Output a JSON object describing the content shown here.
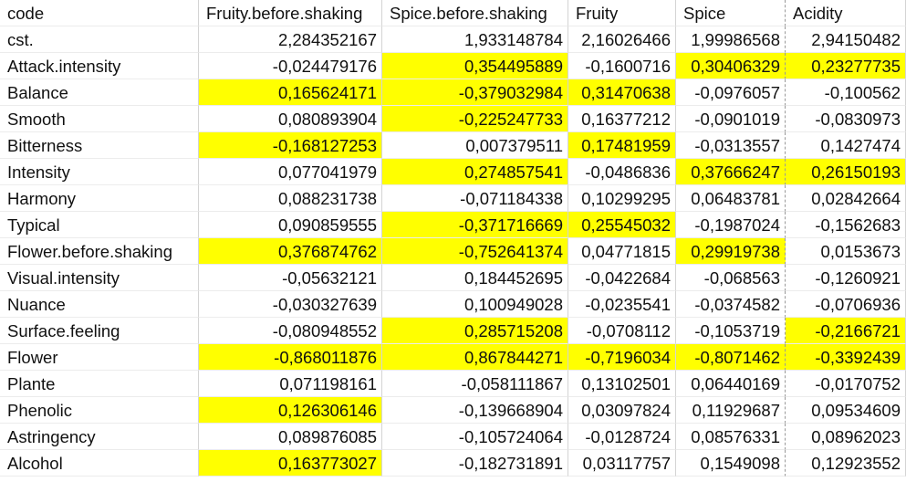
{
  "sheet": {
    "headers": [
      "code",
      "Fruity.before.shaking",
      "Spice.before.shaking",
      "Fruity",
      "Spice",
      "Acidity"
    ],
    "highlight_color": "#ffff00",
    "rows": [
      {
        "code": "cst.",
        "values": [
          "2,284352167",
          "1,933148784",
          "2,16026466",
          "1,99986568",
          "2,94150482"
        ],
        "hl": [
          false,
          false,
          false,
          false,
          false
        ]
      },
      {
        "code": "Attack.intensity",
        "values": [
          "-0,024479176",
          "0,354495889",
          "-0,1600716",
          "0,30406329",
          "0,23277735"
        ],
        "hl": [
          false,
          true,
          false,
          true,
          true
        ]
      },
      {
        "code": "Balance",
        "values": [
          "0,165624171",
          "-0,379032984",
          "0,31470638",
          "-0,0976057",
          "-0,100562"
        ],
        "hl": [
          true,
          true,
          true,
          false,
          false
        ]
      },
      {
        "code": "Smooth",
        "values": [
          "0,080893904",
          "-0,225247733",
          "0,16377212",
          "-0,0901019",
          "-0,0830973"
        ],
        "hl": [
          false,
          true,
          false,
          false,
          false
        ]
      },
      {
        "code": "Bitterness",
        "values": [
          "-0,168127253",
          "0,007379511",
          "0,17481959",
          "-0,0313557",
          "0,1427474"
        ],
        "hl": [
          true,
          false,
          true,
          false,
          false
        ]
      },
      {
        "code": "Intensity",
        "values": [
          "0,077041979",
          "0,274857541",
          "-0,0486836",
          "0,37666247",
          "0,26150193"
        ],
        "hl": [
          false,
          true,
          false,
          true,
          true
        ]
      },
      {
        "code": "Harmony",
        "values": [
          "0,088231738",
          "-0,071184338",
          "0,10299295",
          "0,06483781",
          "0,02842664"
        ],
        "hl": [
          false,
          false,
          false,
          false,
          false
        ]
      },
      {
        "code": "Typical",
        "values": [
          "0,090859555",
          "-0,371716669",
          "0,25545032",
          "-0,1987024",
          "-0,1562683"
        ],
        "hl": [
          false,
          true,
          true,
          false,
          false
        ]
      },
      {
        "code": "Flower.before.shaking",
        "values": [
          "0,376874762",
          "-0,752641374",
          "0,04771815",
          "0,29919738",
          "0,0153673"
        ],
        "hl": [
          true,
          true,
          false,
          true,
          false
        ]
      },
      {
        "code": "Visual.intensity",
        "values": [
          "-0,05632121",
          "0,184452695",
          "-0,0422684",
          "-0,068563",
          "-0,1260921"
        ],
        "hl": [
          false,
          false,
          false,
          false,
          false
        ]
      },
      {
        "code": "Nuance",
        "values": [
          "-0,030327639",
          "0,100949028",
          "-0,0235541",
          "-0,0374582",
          "-0,0706936"
        ],
        "hl": [
          false,
          false,
          false,
          false,
          false
        ]
      },
      {
        "code": "Surface.feeling",
        "values": [
          "-0,080948552",
          "0,285715208",
          "-0,0708112",
          "-0,1053719",
          "-0,2166721"
        ],
        "hl": [
          false,
          true,
          false,
          false,
          true
        ]
      },
      {
        "code": "Flower",
        "values": [
          "-0,868011876",
          "0,867844271",
          "-0,7196034",
          "-0,8071462",
          "-0,3392439"
        ],
        "hl": [
          true,
          true,
          true,
          true,
          true
        ]
      },
      {
        "code": "Plante",
        "values": [
          "0,071198161",
          "-0,058111867",
          "0,13102501",
          "0,06440169",
          "-0,0170752"
        ],
        "hl": [
          false,
          false,
          false,
          false,
          false
        ]
      },
      {
        "code": "Phenolic",
        "values": [
          "0,126306146",
          "-0,139668904",
          "0,03097824",
          "0,11929687",
          "0,09534609"
        ],
        "hl": [
          true,
          false,
          false,
          false,
          false
        ]
      },
      {
        "code": "Astringency",
        "values": [
          "0,089876085",
          "-0,105724064",
          "-0,0128724",
          "0,08576331",
          "0,08962023"
        ],
        "hl": [
          false,
          false,
          false,
          false,
          false
        ]
      },
      {
        "code": "Alcohol",
        "values": [
          "0,163773027",
          "-0,182731891",
          "0,03117757",
          "0,1549098",
          "0,12923552"
        ],
        "hl": [
          true,
          false,
          false,
          false,
          false
        ]
      }
    ]
  }
}
